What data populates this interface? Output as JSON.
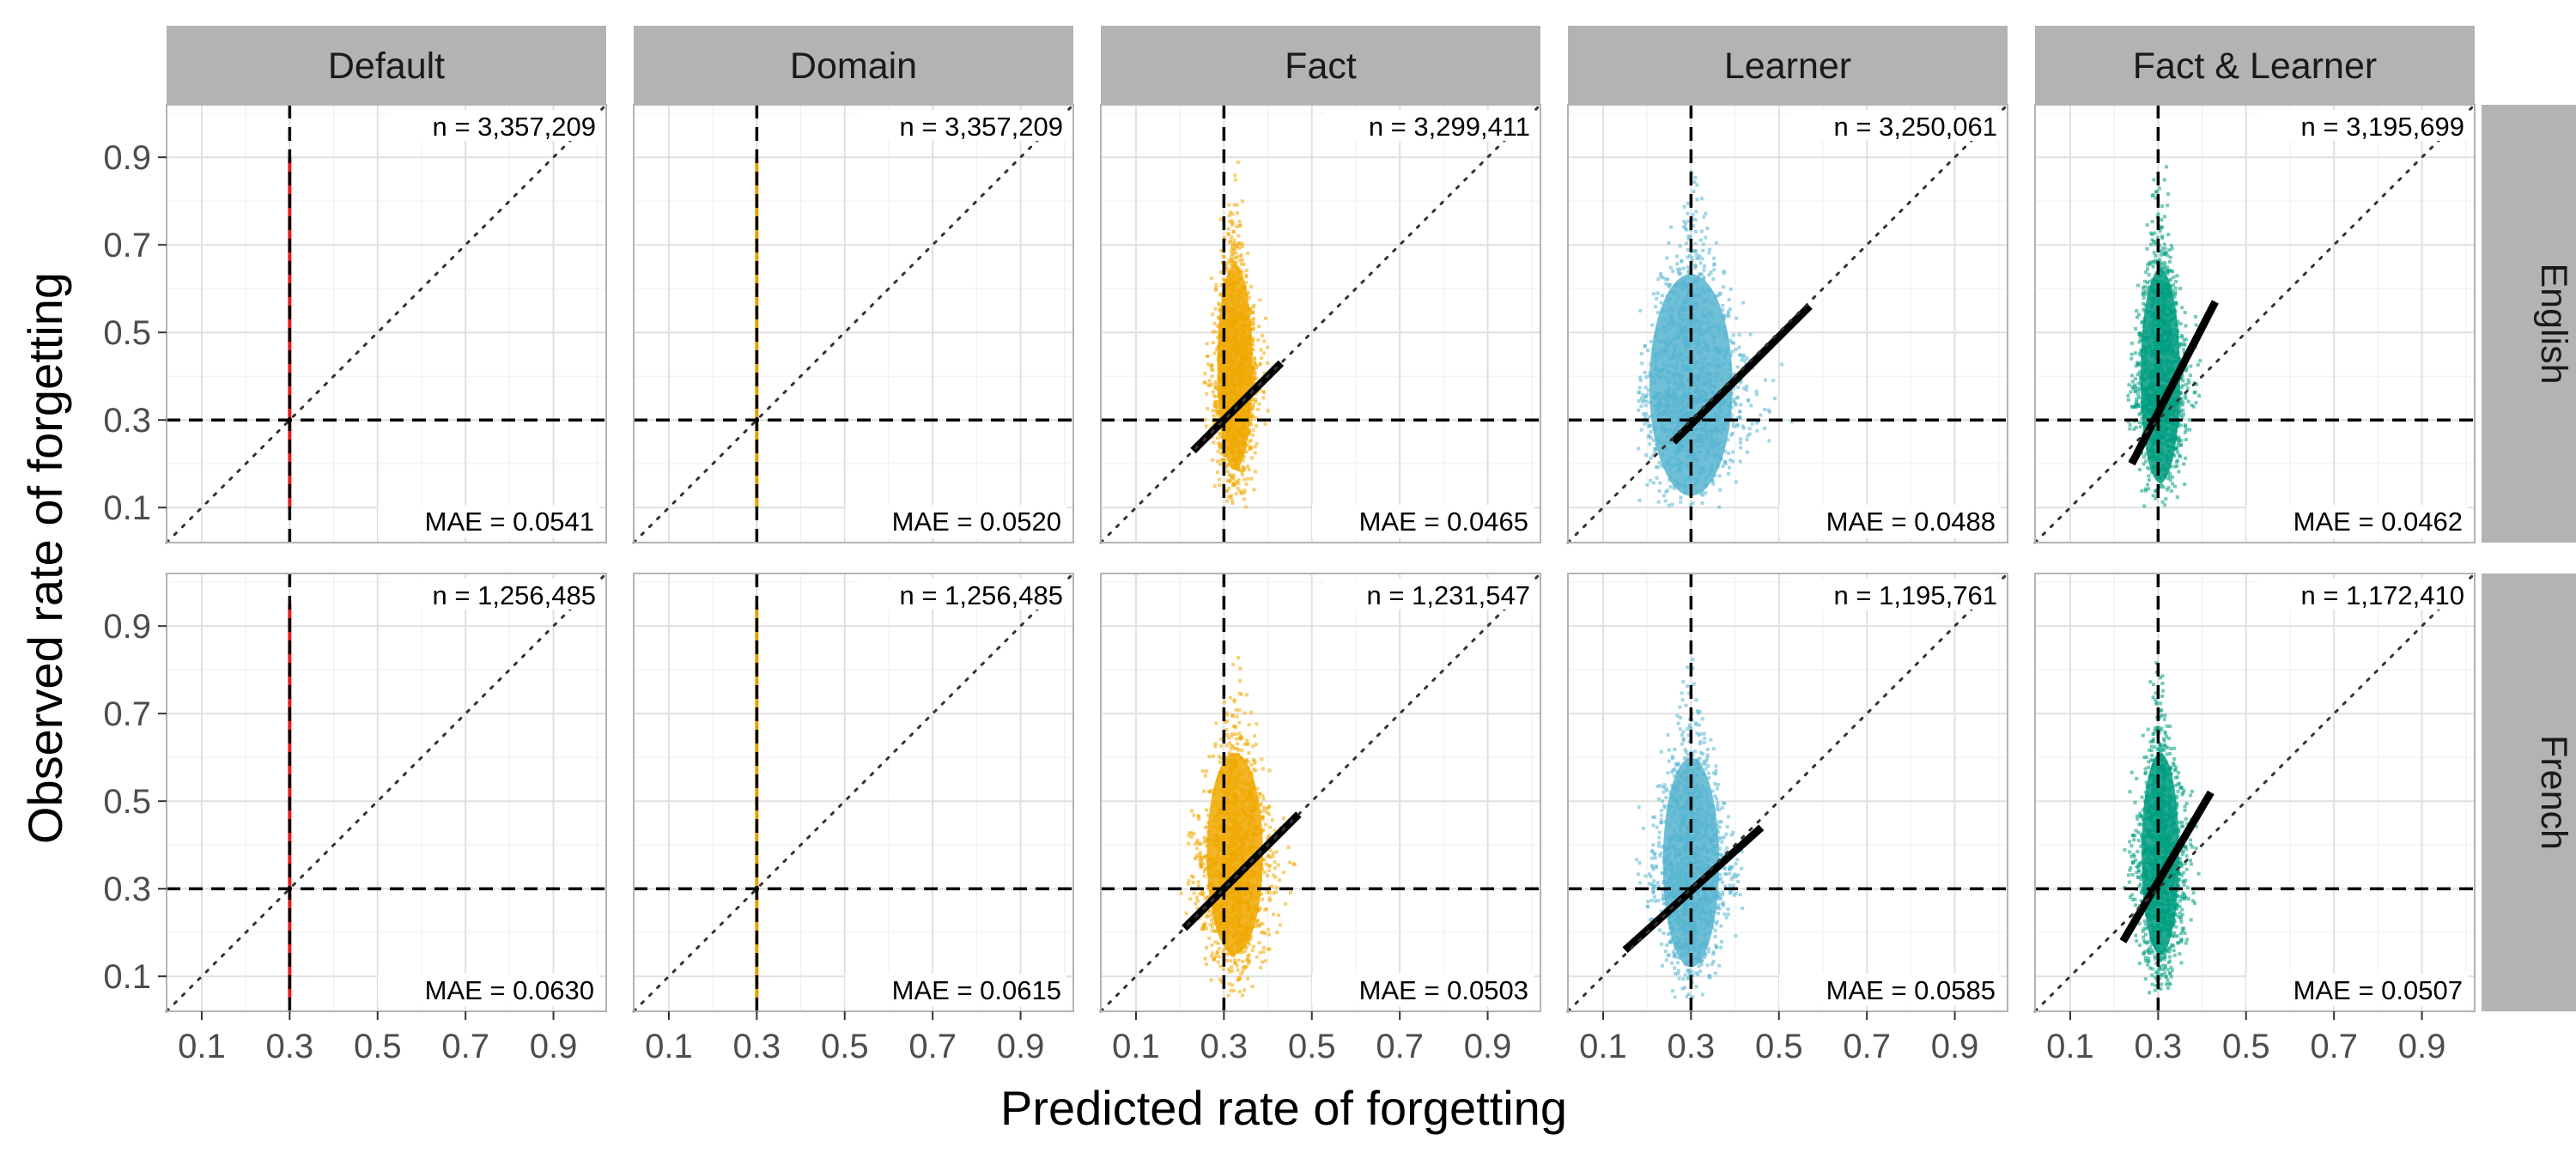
{
  "chart_data": {
    "type": "scatter",
    "xlabel": "Predicted rate of forgetting",
    "ylabel": "Observed rate of forgetting",
    "xlim": [
      0.02,
      1.02
    ],
    "ylim": [
      0.02,
      1.02
    ],
    "x_ticks": [
      0.1,
      0.3,
      0.5,
      0.7,
      0.9
    ],
    "y_ticks": [
      0.1,
      0.3,
      0.5,
      0.7,
      0.9
    ],
    "x_tick_labels": [
      "0.1",
      "0.3",
      "0.5",
      "0.7",
      "0.9"
    ],
    "y_tick_labels": [
      "0.1",
      "0.3",
      "0.5",
      "0.7",
      "0.9"
    ],
    "grid": true,
    "reference_lines": {
      "vertical_x": 0.3,
      "horizontal_y": 0.3,
      "identity_diagonal": true
    },
    "columns": [
      "Default",
      "Domain",
      "Fact",
      "Learner",
      "Fact & Learner"
    ],
    "rows": [
      "English",
      "French"
    ],
    "column_colors": [
      "#e41a1c",
      "#e69f00",
      "#f0a800",
      "#56b4d0",
      "#009e80"
    ],
    "panels": [
      {
        "column": "Default",
        "row": "English",
        "n_label": "n = 3,357,209",
        "mae_label": "MAE = 0.0541",
        "kind": "vertical",
        "x": 0.3,
        "y_range": [
          0.1,
          0.9
        ]
      },
      {
        "column": "Domain",
        "row": "English",
        "n_label": "n = 3,357,209",
        "mae_label": "MAE = 0.0520",
        "kind": "vertical",
        "x": 0.3,
        "y_range": [
          0.1,
          0.9
        ]
      },
      {
        "column": "Fact",
        "row": "English",
        "n_label": "n = 3,299,411",
        "mae_label": "MAE = 0.0465",
        "kind": "cloud",
        "cloud": {
          "cx": 0.325,
          "x_range": [
            0.25,
            0.42
          ],
          "y_range": [
            0.1,
            0.9
          ],
          "y_center": 0.4
        },
        "fit": {
          "x": [
            0.23,
            0.43
          ],
          "y": [
            0.23,
            0.43
          ]
        }
      },
      {
        "column": "Learner",
        "row": "English",
        "n_label": "n = 3,250,061",
        "mae_label": "MAE = 0.0488",
        "kind": "cloud",
        "cloud": {
          "cx": 0.3,
          "x_range": [
            0.18,
            0.58
          ],
          "y_range": [
            0.1,
            0.9
          ],
          "y_center": 0.36
        },
        "fit": {
          "x": [
            0.26,
            0.57
          ],
          "y": [
            0.25,
            0.56
          ]
        }
      },
      {
        "column": "Fact & Learner",
        "row": "English",
        "n_label": "n = 3,195,699",
        "mae_label": "MAE = 0.0462",
        "kind": "cloud",
        "cloud": {
          "cx": 0.305,
          "x_range": [
            0.23,
            0.42
          ],
          "y_range": [
            0.1,
            0.9
          ],
          "y_center": 0.38
        },
        "fit": {
          "x": [
            0.24,
            0.43
          ],
          "y": [
            0.2,
            0.57
          ]
        }
      },
      {
        "column": "Default",
        "row": "French",
        "n_label": "n = 1,256,485",
        "mae_label": "MAE = 0.0630",
        "kind": "vertical",
        "x": 0.3,
        "y_range": [
          0.05,
          0.95
        ]
      },
      {
        "column": "Domain",
        "row": "French",
        "n_label": "n = 1,256,485",
        "mae_label": "MAE = 0.0615",
        "kind": "vertical",
        "x": 0.3,
        "y_range": [
          0.05,
          0.95
        ]
      },
      {
        "column": "Fact",
        "row": "French",
        "n_label": "n = 1,231,547",
        "mae_label": "MAE = 0.0503",
        "kind": "cloud",
        "cloud": {
          "cx": 0.325,
          "x_range": [
            0.2,
            0.47
          ],
          "y_range": [
            0.05,
            0.85
          ],
          "y_center": 0.36
        },
        "fit": {
          "x": [
            0.21,
            0.47
          ],
          "y": [
            0.21,
            0.47
          ]
        }
      },
      {
        "column": "Learner",
        "row": "French",
        "n_label": "n = 1,195,761",
        "mae_label": "MAE = 0.0585",
        "kind": "cloud",
        "cloud": {
          "cx": 0.3,
          "x_range": [
            0.16,
            0.43
          ],
          "y_range": [
            0.05,
            0.85
          ],
          "y_center": 0.34
        },
        "fit": {
          "x": [
            0.15,
            0.46
          ],
          "y": [
            0.16,
            0.44
          ]
        }
      },
      {
        "column": "Fact & Learner",
        "row": "French",
        "n_label": "n = 1,172,410",
        "mae_label": "MAE = 0.0507",
        "kind": "cloud",
        "cloud": {
          "cx": 0.305,
          "x_range": [
            0.22,
            0.4
          ],
          "y_range": [
            0.05,
            0.85
          ],
          "y_center": 0.36
        },
        "fit": {
          "x": [
            0.22,
            0.42
          ],
          "y": [
            0.18,
            0.52
          ]
        }
      }
    ]
  }
}
